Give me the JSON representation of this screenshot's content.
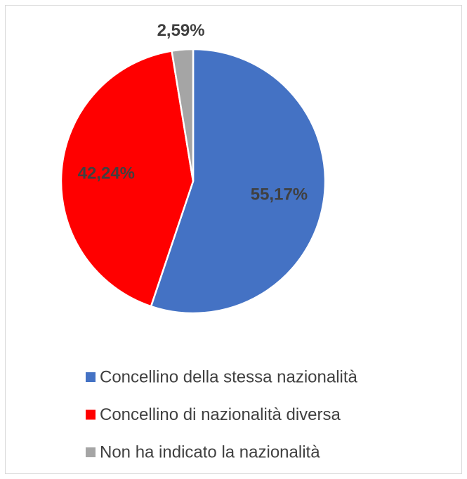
{
  "chart_data": {
    "type": "pie",
    "categories": [
      "Concellino della stessa nazionalità",
      "Concellino di nazionalità diversa",
      "Non ha indicato la nazionalità"
    ],
    "values": [
      55.17,
      42.24,
      2.59
    ],
    "value_labels": [
      "55,17%",
      "42,24%",
      "2,59%"
    ],
    "colors": [
      "#4472c4",
      "#ff0000",
      "#a5a5a5"
    ],
    "legend": "bottom"
  }
}
